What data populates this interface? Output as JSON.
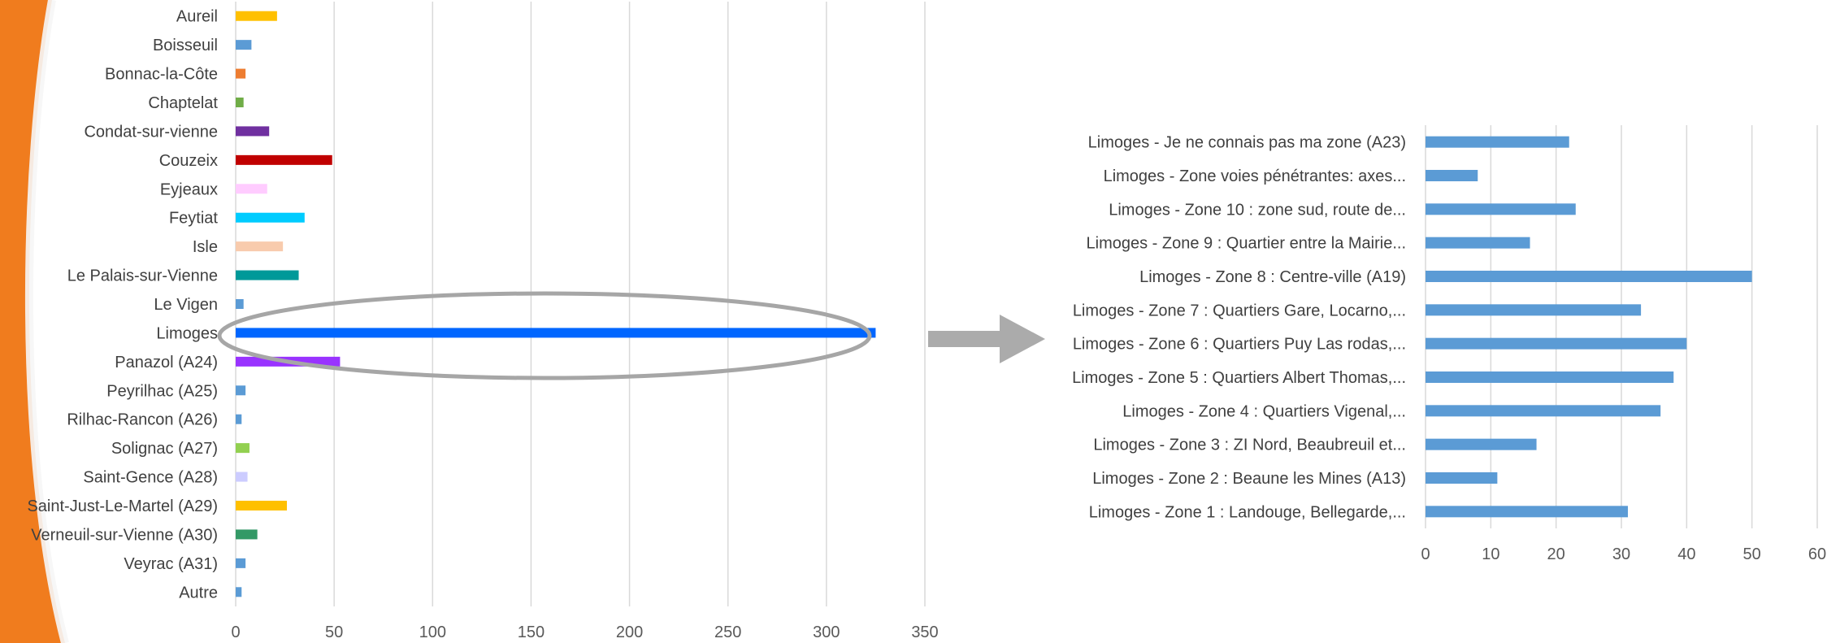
{
  "chart_data": [
    {
      "type": "bar",
      "orientation": "horizontal",
      "title": "",
      "xlabel": "",
      "ylabel": "",
      "xlim": [
        0,
        350
      ],
      "xticks": [
        0,
        50,
        100,
        150,
        200,
        250,
        300,
        350
      ],
      "grid": true,
      "categories": [
        "Aureil",
        "Boisseuil",
        "Bonnac-la-Côte",
        "Chaptelat",
        "Condat-sur-vienne",
        "Couzeix",
        "Eyjeaux",
        "Feytiat",
        "Isle",
        "Le Palais-sur-Vienne",
        "Le Vigen",
        "Limoges",
        "Panazol (A24)",
        "Peyrilhac (A25)",
        "Rilhac-Rancon (A26)",
        "Solignac (A27)",
        "Saint-Gence (A28)",
        "Saint-Just-Le-Martel (A29)",
        "Verneuil-sur-Vienne (A30)",
        "Veyrac (A31)",
        "Autre"
      ],
      "values": [
        21,
        8,
        5,
        4,
        17,
        49,
        16,
        35,
        24,
        32,
        4,
        325,
        53,
        5,
        3,
        7,
        6,
        26,
        11,
        5,
        3
      ],
      "colors": [
        "#FFC000",
        "#5B9BD5",
        "#ED7D31",
        "#70AD47",
        "#7030A0",
        "#C00000",
        "#FFCCFF",
        "#00CCFF",
        "#F8CBAD",
        "#009999",
        "#5B9BD5",
        "#0066FF",
        "#9933FF",
        "#5B9BD5",
        "#5B9BD5",
        "#92D050",
        "#CCCCFF",
        "#FFC000",
        "#339966",
        "#5B9BD5",
        "#5B9BD5"
      ]
    },
    {
      "type": "bar",
      "orientation": "horizontal",
      "title": "",
      "xlabel": "",
      "ylabel": "",
      "xlim": [
        0,
        60
      ],
      "xticks": [
        0,
        10,
        20,
        30,
        40,
        50,
        60
      ],
      "grid": true,
      "categories": [
        "Limoges - Je ne connais pas ma zone (A23)",
        "Limoges - Zone voies pénétrantes: axes...",
        "Limoges - Zone 10 : zone sud, route de...",
        "Limoges - Zone 9 : Quartier entre la Mairie...",
        "Limoges - Zone 8 : Centre-ville (A19)",
        "Limoges - Zone 7 : Quartiers Gare, Locarno,...",
        "Limoges - Zone 6 : Quartiers Puy Las rodas,...",
        "Limoges - Zone 5 : Quartiers Albert Thomas,...",
        "Limoges - Zone 4 : Quartiers Vigenal,...",
        "Limoges - Zone 3 : ZI Nord, Beaubreuil et...",
        "Limoges - Zone 2 : Beaune les Mines (A13)",
        "Limoges - Zone 1 : Landouge, Bellegarde,..."
      ],
      "values": [
        22,
        8,
        23,
        16,
        50,
        33,
        40,
        38,
        36,
        17,
        11,
        31
      ],
      "colors": [
        "#5B9BD5"
      ]
    }
  ],
  "theme": {
    "accent_orange": "#F07C1E",
    "ellipse": "#A6A6A6",
    "arrow": "#ABABAB",
    "grid": "#D9D9D9"
  }
}
